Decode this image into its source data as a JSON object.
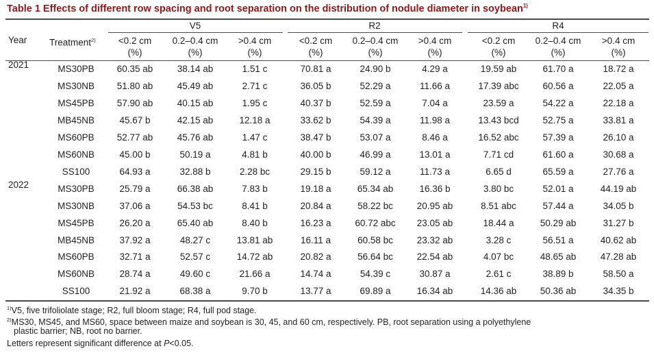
{
  "title": {
    "label": "Table 1  Effects of different row spacing and root separation on the distribution of nodule diameter in soybean",
    "sup": "1)"
  },
  "headers": {
    "year": "Year",
    "treatment": "Treatment",
    "treatment_sup": "2)",
    "stages": [
      "V5",
      "R2",
      "R4"
    ],
    "bins": [
      "<0.2 cm",
      "0.2–0.4 cm",
      ">0.4 cm"
    ],
    "unit": "(%)"
  },
  "groups": [
    {
      "year": "2021",
      "rows": [
        {
          "treatment": "MS30PB",
          "values": [
            "60.35 ab",
            "38.14 ab",
            "1.51 c",
            "70.81 a",
            "24.90 b",
            "4.29 a",
            "19.59 ab",
            "61.70 a",
            "18.72 a"
          ]
        },
        {
          "treatment": "MS30NB",
          "values": [
            "51.80 ab",
            "45.49 ab",
            "2.71 c",
            "36.05 b",
            "52.29 a",
            "11.66 a",
            "17.39 abc",
            "60.56 a",
            "22.05 a"
          ]
        },
        {
          "treatment": "MS45PB",
          "values": [
            "57.90 ab",
            "40.15 ab",
            "1.95 c",
            "40.37 b",
            "52.59 a",
            "7.04 a",
            "23.59 a",
            "54.22 a",
            "22.18 a"
          ]
        },
        {
          "treatment": "MB45NB",
          "values": [
            "45.67 b",
            "42.15 ab",
            "12.18 a",
            "33.62 b",
            "54.39 a",
            "11.98 a",
            "13.43 bcd",
            "52.75 a",
            "33.81 a"
          ]
        },
        {
          "treatment": "MS60PB",
          "values": [
            "52.77 ab",
            "45.76 ab",
            "1.47 c",
            "38.47 b",
            "53.07 a",
            "8.46 a",
            "16.52 abc",
            "57.39 a",
            "26.10 a"
          ]
        },
        {
          "treatment": "MS60NB",
          "values": [
            "45.00 b",
            "50.19 a",
            "4.81 b",
            "40.00 b",
            "46.99 a",
            "13.01 a",
            "7.71 cd",
            "61.60 a",
            "30.68 a"
          ]
        },
        {
          "treatment": "SS100",
          "values": [
            "64.93 a",
            "32.88 b",
            "2.28 bc",
            "29.15 b",
            "59.12 a",
            "11.73 a",
            "6.65 d",
            "65.59 a",
            "27.76 a"
          ]
        }
      ]
    },
    {
      "year": "2022",
      "rows": [
        {
          "treatment": "MS30PB",
          "values": [
            "25.79 a",
            "66.38 ab",
            "7.83 b",
            "19.18 a",
            "65.34 ab",
            "16.36 b",
            "3.80 bc",
            "52.01 a",
            "44.19 ab"
          ]
        },
        {
          "treatment": "MS30NB",
          "values": [
            "37.06 a",
            "54.53 bc",
            "8.41 b",
            "20.84 a",
            "58.22 bc",
            "20.95 ab",
            "8.51 abc",
            "57.44 a",
            "34.05 b"
          ]
        },
        {
          "treatment": "MS45PB",
          "values": [
            "26.20 a",
            "65.40 ab",
            "8.40 b",
            "16.23 a",
            "60.72 abc",
            "23.05 ab",
            "18.44 a",
            "50.29 ab",
            "31.27 b"
          ]
        },
        {
          "treatment": "MB45NB",
          "values": [
            "37.92 a",
            "48.27 c",
            "13.81 ab",
            "16.11 a",
            "60.58 bc",
            "23.32 ab",
            "3.28 c",
            "56.51 a",
            "40.62 ab"
          ]
        },
        {
          "treatment": "MS60PB",
          "values": [
            "32.71 a",
            "52.57 c",
            "14.72 ab",
            "20.82 a",
            "56.64 bc",
            "22.54 ab",
            "4.07 bc",
            "48.65 ab",
            "47.28 ab"
          ]
        },
        {
          "treatment": "MS60NB",
          "values": [
            "28.74 a",
            "49.60 c",
            "21.66 a",
            "14.74 a",
            "54.39 c",
            "30.87 a",
            "2.61 c",
            "38.89 b",
            "58.50 a"
          ]
        },
        {
          "treatment": "SS100",
          "values": [
            "21.92 a",
            "68.38 a",
            "9.70 b",
            "13.77 a",
            "69.89 a",
            "16.34 ab",
            "14.36 ab",
            "50.36 ab",
            "34.35 b"
          ]
        }
      ]
    }
  ],
  "footnotes": {
    "fn1_sup": "1)",
    "fn1": "V5, five trifoliolate stage; R2, full bloom stage; R4, full pod stage.",
    "fn2_sup": "2)",
    "fn2_line1": "MS30, MS45, and MS60, space between maize and soybean is 30, 45, and 60 cm, respectively.  PB, root separation using a polyethylene",
    "fn2_line2": "plastic barrier; NB, root no barrier.",
    "fn3_pre": "Letters represent significant difference at ",
    "fn3_p": "P",
    "fn3_post": "<0.05."
  },
  "colors": {
    "title": "#8b1a1a",
    "text": "#231f20",
    "rule": "#4a4a4a"
  }
}
